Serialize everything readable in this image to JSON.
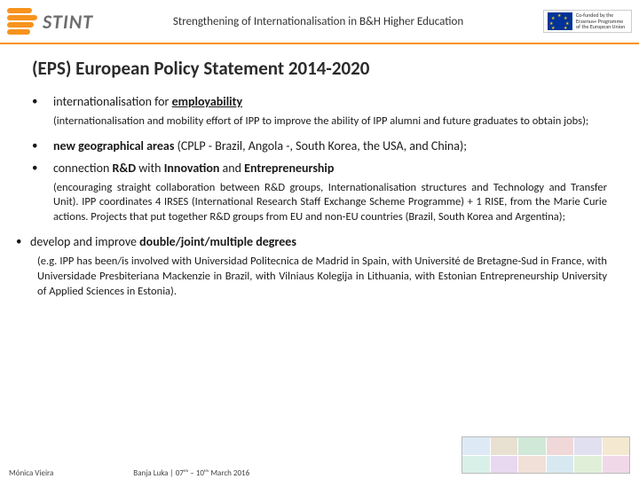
{
  "header": {
    "logo_text": "STINT",
    "title": "Strengthening of Internationalisation in B&H Higher Education",
    "eu_text": "Co-funded by the Erasmus+ Programme of the European Union"
  },
  "colors": {
    "accent": "#f7931e",
    "eu_blue": "#003399",
    "eu_gold": "#ffcc00",
    "text": "#1a1a1a"
  },
  "title": "(EPS) European Policy Statement 2014-2020",
  "bullets": [
    {
      "lead": "internationalisation for ",
      "bold_underline": "employability",
      "sub": "(internationalisation and mobility effort of IPP to improve the ability of IPP alumni and future graduates to obtain jobs);"
    },
    {
      "html": "<b>new geographical areas</b> (CPLP - Brazil, Angola -, South Korea, the USA, and China);"
    },
    {
      "html": "connection <b>R&D</b> with <b>Innovation</b> and <b>Entrepreneurship</b>",
      "sub": "(encouraging straight collaboration between R&D groups, Internationalisation structures and Technology and Transfer Unit). IPP coordinates 4 IRSES (International Research Staff Exchange Scheme Programme) + 1 RISE, from the Marie Curie actions. Projects that put together R&D groups from EU and non-EU countries (Brazil, South Korea and Argentina);"
    }
  ],
  "outer_bullet": {
    "html": "develop and improve <b>double/joint/multiple degrees</b>",
    "sub": "(e.g. IPP has been/is involved with Universidad Politecnica de Madrid in Spain, with Université de Bretagne-Sud in  France, with Universidade Presbiteriana Mackenzie in Brazil, with Vilniaus Kolegija in Lithuania, with Estonian Entrepreneurship University of Applied Sciences in Estonia)."
  },
  "footer": {
    "author": "Mónica Vieira",
    "location": "Banja Luka | 07ᵗʰ – 10ᵗʰ March 2016"
  }
}
